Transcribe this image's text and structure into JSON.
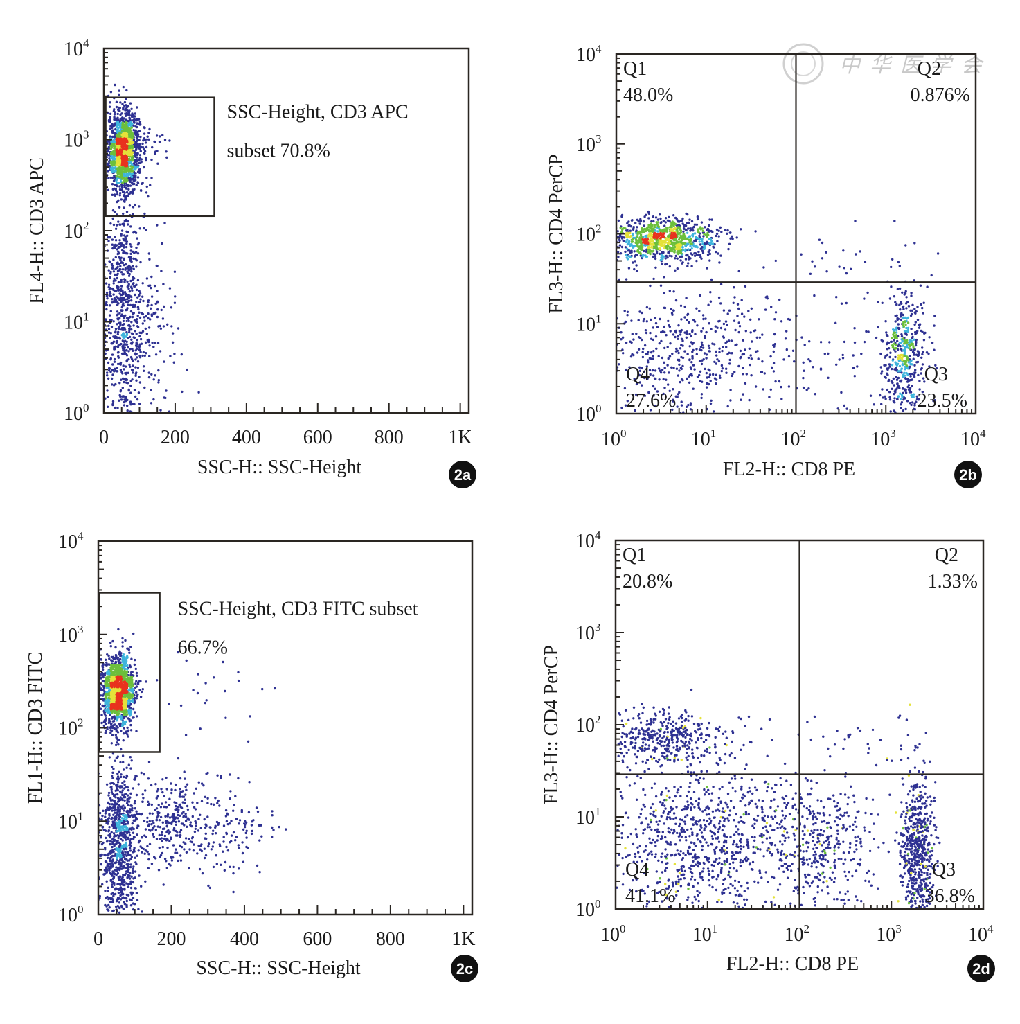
{
  "figure": {
    "watermark_text": "中华医学会",
    "colors": {
      "axis": "#2a2622",
      "low": "#2e3192",
      "mid_low": "#3fb4dc",
      "mid": "#6cbf3c",
      "mid_high": "#e4e23a",
      "high": "#e8321e",
      "badge_bg": "#111111"
    }
  },
  "chart_data": [
    {
      "id": "2a",
      "type": "scatter",
      "badge": "2a",
      "xlabel": "SSC-H:: SSC-Height",
      "ylabel": "FL4-H:: CD3 APC",
      "xscale": "linear",
      "yscale": "log",
      "xlim": [
        0,
        1024
      ],
      "ylim": [
        1,
        10000
      ],
      "xticks": [
        {
          "v": 0,
          "label": "0"
        },
        {
          "v": 200,
          "label": "200"
        },
        {
          "v": 400,
          "label": "400"
        },
        {
          "v": 600,
          "label": "600"
        },
        {
          "v": 800,
          "label": "800"
        },
        {
          "v": 1000,
          "label": "1K"
        }
      ],
      "yticks": [
        {
          "v": 1,
          "base": "10",
          "exp": "0"
        },
        {
          "v": 10,
          "base": "10",
          "exp": "1"
        },
        {
          "v": 100,
          "base": "10",
          "exp": "2"
        },
        {
          "v": 1000,
          "base": "10",
          "exp": "3"
        },
        {
          "v": 10000,
          "base": "10",
          "exp": "4"
        }
      ],
      "gate": {
        "x": [
          5,
          310
        ],
        "y": [
          145,
          2900
        ],
        "label_lines": [
          "SSC-Height, CD3 APC",
          "subset 70.8%"
        ],
        "percent": 70.8
      },
      "clusters": [
        {
          "n": 1400,
          "cx": 55,
          "sx": 22,
          "cy_log": 2.88,
          "sy_log": 0.22,
          "dense": true
        },
        {
          "n": 700,
          "cx": 55,
          "sx": 28,
          "cy_log": 1.1,
          "sy_log": 0.65,
          "dense": false
        },
        {
          "n": 120,
          "cx": 140,
          "sx": 40,
          "cy_log": 0.9,
          "sy_log": 0.5,
          "dense": false
        },
        {
          "n": 60,
          "cx": 110,
          "sx": 45,
          "cy_log": 2.95,
          "sy_log": 0.12,
          "dense": false
        }
      ]
    },
    {
      "id": "2b",
      "type": "scatter",
      "badge": "2b",
      "xlabel": "FL2-H:: CD8 PE",
      "ylabel": "FL3-H:: CD4 PerCP",
      "xscale": "log",
      "yscale": "log",
      "xlim": [
        1,
        10000
      ],
      "ylim": [
        1,
        10000
      ],
      "xticks": [
        {
          "v": 1,
          "base": "10",
          "exp": "0"
        },
        {
          "v": 10,
          "base": "10",
          "exp": "1"
        },
        {
          "v": 100,
          "base": "10",
          "exp": "2"
        },
        {
          "v": 1000,
          "base": "10",
          "exp": "3"
        },
        {
          "v": 10000,
          "base": "10",
          "exp": "4"
        }
      ],
      "yticks": [
        {
          "v": 1,
          "base": "10",
          "exp": "0"
        },
        {
          "v": 10,
          "base": "10",
          "exp": "1"
        },
        {
          "v": 100,
          "base": "10",
          "exp": "2"
        },
        {
          "v": 1000,
          "base": "10",
          "exp": "3"
        },
        {
          "v": 10000,
          "base": "10",
          "exp": "4"
        }
      ],
      "quadrant_divider": {
        "x": 100,
        "y": 29
      },
      "quadrants": [
        {
          "name": "Q1",
          "percent": "48.0%",
          "position": "top-left"
        },
        {
          "name": "Q2",
          "percent": "0.876%",
          "position": "top-right"
        },
        {
          "name": "Q3",
          "percent": "23.5%",
          "position": "bottom-right"
        },
        {
          "name": "Q4",
          "percent": "27.6%",
          "position": "bottom-left"
        }
      ],
      "clusters": [
        {
          "n": 950,
          "cx_log": 0.5,
          "sx_log": 0.32,
          "cy_log": 1.93,
          "sy_log": 0.12,
          "dense": true
        },
        {
          "n": 520,
          "cx_log": 0.8,
          "sx_log": 0.6,
          "cy_log": 0.7,
          "sy_log": 0.38,
          "dense": false
        },
        {
          "n": 480,
          "cx_log": 3.22,
          "sx_log": 0.12,
          "cy_log": 0.65,
          "sy_log": 0.38,
          "dense": false
        },
        {
          "n": 70,
          "cx_log": 2.3,
          "sx_log": 0.6,
          "cy_log": 0.6,
          "sy_log": 0.35,
          "dense": false
        },
        {
          "n": 25,
          "cx_log": 2.6,
          "sx_log": 0.45,
          "cy_log": 1.75,
          "sy_log": 0.18,
          "dense": false
        }
      ]
    },
    {
      "id": "2c",
      "type": "scatter",
      "badge": "2c",
      "xlabel": "SSC-H:: SSC-Height",
      "ylabel": "FL1-H:: CD3 FITC",
      "xscale": "linear",
      "yscale": "log",
      "xlim": [
        0,
        1024
      ],
      "ylim": [
        1,
        10000
      ],
      "xticks": [
        {
          "v": 0,
          "label": "0"
        },
        {
          "v": 200,
          "label": "200"
        },
        {
          "v": 400,
          "label": "400"
        },
        {
          "v": 600,
          "label": "600"
        },
        {
          "v": 800,
          "label": "800"
        },
        {
          "v": 1000,
          "label": "1K"
        }
      ],
      "yticks": [
        {
          "v": 1,
          "base": "10",
          "exp": "0"
        },
        {
          "v": 10,
          "base": "10",
          "exp": "1"
        },
        {
          "v": 100,
          "base": "10",
          "exp": "2"
        },
        {
          "v": 1000,
          "base": "10",
          "exp": "3"
        },
        {
          "v": 10000,
          "base": "10",
          "exp": "4"
        }
      ],
      "gate": {
        "x": [
          2,
          168
        ],
        "y": [
          55,
          2800
        ],
        "label_lines": [
          "SSC-Height, CD3 FITC subset",
          "66.7%"
        ],
        "percent": 66.7
      },
      "clusters": [
        {
          "n": 1300,
          "cx": 55,
          "sx": 22,
          "cy_log": 2.38,
          "sy_log": 0.2,
          "dense": true
        },
        {
          "n": 800,
          "cx": 58,
          "sx": 25,
          "cy_log": 0.75,
          "sy_log": 0.45,
          "dense": false
        },
        {
          "n": 320,
          "cx": 200,
          "sx": 55,
          "cy_log": 0.95,
          "sy_log": 0.25,
          "dense": false
        },
        {
          "n": 110,
          "cx": 360,
          "sx": 60,
          "cy_log": 0.9,
          "sy_log": 0.25,
          "dense": false
        },
        {
          "n": 25,
          "cx": 300,
          "sx": 100,
          "cy_log": 2.4,
          "sy_log": 0.3,
          "dense": false
        }
      ]
    },
    {
      "id": "2d",
      "type": "scatter",
      "badge": "2d",
      "xlabel": "FL2-H:: CD8 PE",
      "ylabel": "FL3-H:: CD4 PerCP",
      "xscale": "log",
      "yscale": "log",
      "xlim": [
        1,
        10000
      ],
      "ylim": [
        1,
        10000
      ],
      "xticks": [
        {
          "v": 1,
          "base": "10",
          "exp": "0"
        },
        {
          "v": 10,
          "base": "10",
          "exp": "1"
        },
        {
          "v": 100,
          "base": "10",
          "exp": "2"
        },
        {
          "v": 1000,
          "base": "10",
          "exp": "3"
        },
        {
          "v": 10000,
          "base": "10",
          "exp": "4"
        }
      ],
      "yticks": [
        {
          "v": 1,
          "base": "10",
          "exp": "0"
        },
        {
          "v": 10,
          "base": "10",
          "exp": "1"
        },
        {
          "v": 100,
          "base": "10",
          "exp": "2"
        },
        {
          "v": 1000,
          "base": "10",
          "exp": "3"
        },
        {
          "v": 10000,
          "base": "10",
          "exp": "4"
        }
      ],
      "quadrant_divider": {
        "x": 100,
        "y": 29
      },
      "quadrants": [
        {
          "name": "Q1",
          "percent": "20.8%",
          "position": "top-left"
        },
        {
          "name": "Q2",
          "percent": "1.33%",
          "position": "top-right"
        },
        {
          "name": "Q3",
          "percent": "36.8%",
          "position": "bottom-right"
        },
        {
          "name": "Q4",
          "percent": "41.1%",
          "position": "bottom-left"
        }
      ],
      "clusters": [
        {
          "n": 420,
          "cx_log": 0.55,
          "sx_log": 0.35,
          "cy_log": 1.85,
          "sy_log": 0.15,
          "dense": false
        },
        {
          "n": 900,
          "cx_log": 1.0,
          "sx_log": 0.55,
          "cy_log": 0.75,
          "sy_log": 0.4,
          "dense": false
        },
        {
          "n": 380,
          "cx_log": 2.25,
          "sx_log": 0.3,
          "cy_log": 0.7,
          "sy_log": 0.38,
          "dense": false
        },
        {
          "n": 620,
          "cx_log": 3.28,
          "sx_log": 0.09,
          "cy_log": 0.6,
          "sy_log": 0.42,
          "dense": false
        },
        {
          "n": 35,
          "cx_log": 2.7,
          "sx_log": 0.5,
          "cy_log": 1.8,
          "sy_log": 0.15,
          "dense": false
        }
      ]
    }
  ]
}
